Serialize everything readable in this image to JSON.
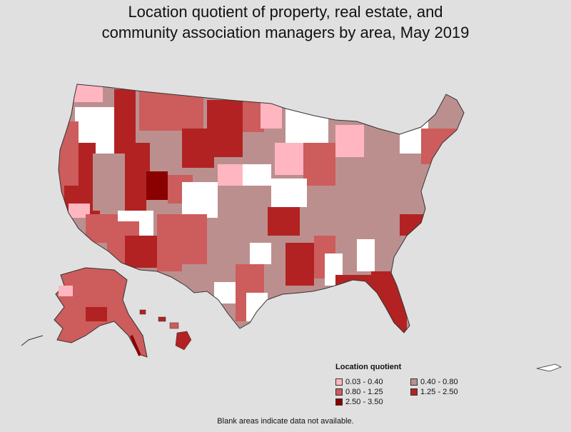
{
  "title_line1": "Location quotient of property, real estate, and",
  "title_line2": "community association managers by area, May 2019",
  "legend": {
    "title": "Location quotient",
    "items": [
      {
        "label": "0.03 - 0.40",
        "color": "#ffb6c1"
      },
      {
        "label": "0.40 - 0.80",
        "color": "#bc8f8f"
      },
      {
        "label": "0.80 - 1.25",
        "color": "#cd5c5c"
      },
      {
        "label": "1.25 - 2.50",
        "color": "#b22222"
      },
      {
        "label": "2.50 - 3.50",
        "color": "#8b0000"
      }
    ]
  },
  "footnote": "Blank areas indicate data not available.",
  "colors": {
    "background": "#e0e0e0",
    "no_data": "#ffffff",
    "border": "#333333"
  }
}
